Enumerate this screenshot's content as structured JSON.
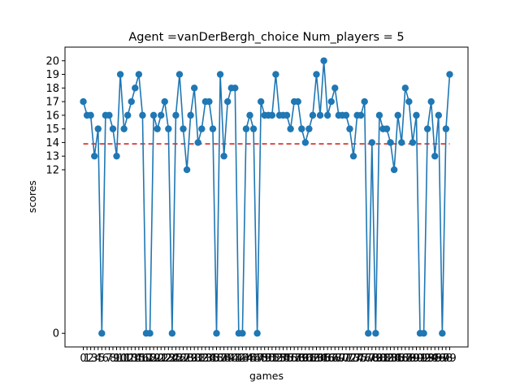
{
  "chart_data": {
    "type": "line",
    "title": "Agent =vanDerBergh_choice Num_players = 5",
    "xlabel": "games",
    "ylabel": "scores",
    "x": [
      0,
      1,
      2,
      3,
      4,
      5,
      6,
      7,
      8,
      9,
      10,
      11,
      12,
      13,
      14,
      15,
      16,
      17,
      18,
      19,
      20,
      21,
      22,
      23,
      24,
      25,
      26,
      27,
      28,
      29,
      30,
      31,
      32,
      33,
      34,
      35,
      36,
      37,
      38,
      39,
      40,
      41,
      42,
      43,
      44,
      45,
      46,
      47,
      48,
      49,
      50,
      51,
      52,
      53,
      54,
      55,
      56,
      57,
      58,
      59,
      60,
      61,
      62,
      63,
      64,
      65,
      66,
      67,
      68,
      69,
      70,
      71,
      72,
      73,
      74,
      75,
      76,
      77,
      78,
      79,
      80,
      81,
      82,
      83,
      84,
      85,
      86,
      87,
      88,
      89,
      90,
      91,
      92,
      93,
      94,
      95,
      96,
      97,
      98,
      99
    ],
    "series": [
      {
        "values": [
          17,
          16,
          16,
          13,
          15,
          0,
          16,
          16,
          15,
          13,
          19,
          15,
          16,
          17,
          18,
          19,
          16,
          0,
          0,
          16,
          15,
          16,
          17,
          15,
          0,
          16,
          19,
          15,
          12,
          16,
          18,
          14,
          15,
          17,
          17,
          15,
          0,
          19,
          13,
          17,
          18,
          18,
          0,
          0,
          15,
          16,
          15,
          0,
          17,
          16,
          16,
          16,
          19,
          16,
          16,
          16,
          15,
          17,
          17,
          15,
          14,
          15,
          16,
          19,
          16,
          20,
          16,
          17,
          18,
          16,
          16,
          16,
          15,
          13,
          16,
          16,
          17,
          0,
          14,
          0,
          16,
          15,
          15,
          14,
          12,
          16,
          14,
          18,
          17,
          14,
          16,
          0,
          0,
          15,
          17,
          13,
          16,
          0,
          15,
          19
        ],
        "color": "#1f77b4"
      }
    ],
    "mean_line": {
      "value": 13.9,
      "color": "#d62728",
      "style": "dashed"
    },
    "ytick_values": [
      0,
      12,
      13,
      14,
      15,
      16,
      17,
      18,
      19,
      20
    ],
    "xlim": [
      -4.95,
      103.95
    ],
    "ylim": [
      -1,
      21
    ],
    "grid": false,
    "legend": "none"
  }
}
